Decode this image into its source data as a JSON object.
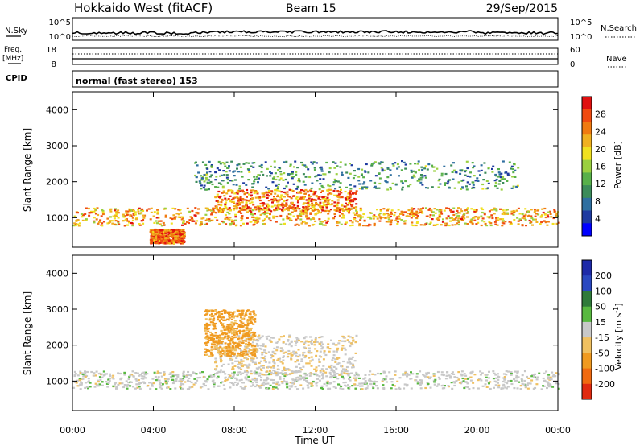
{
  "header": {
    "title": "Hokkaido West (fitACF)",
    "beam": "Beam 15",
    "date": "29/Sep/2015"
  },
  "noise_panel": {
    "left_label": "N.Sky",
    "right_label": "N.Search",
    "left_ticks": [
      "10^5",
      "10^0"
    ],
    "right_ticks": [
      "10^5",
      "10^0"
    ]
  },
  "freq_panel": {
    "left_label_line1": "Freq.",
    "left_label_line2": "[MHz]",
    "left_ticks": [
      "18",
      "8"
    ],
    "right_label": "Nave",
    "right_ticks": [
      "60",
      "0"
    ]
  },
  "cpid_panel": {
    "label": "CPID",
    "text": "normal (fast stereo) 153"
  },
  "chart_data": [
    {
      "type": "heatmap",
      "name": "power",
      "ylabel": "Slant Range [km]",
      "x": {
        "min": 0,
        "max": 24,
        "unit": "hours UT"
      },
      "y": {
        "min": 180,
        "max": 4500,
        "unit": "km"
      },
      "yticks": [
        "1000",
        "2000",
        "3000",
        "4000"
      ],
      "colorbar": {
        "label": "Power [dB]",
        "tick_labels": [
          "4",
          "8",
          "12",
          "16",
          "20",
          "24",
          "28"
        ],
        "range": [
          0,
          32
        ],
        "colors": [
          "#0000ff",
          "#1e3aa0",
          "#2f6fa0",
          "#3c8c5a",
          "#58b04a",
          "#9ad040",
          "#f0e020",
          "#f0b020",
          "#f07a10",
          "#f04a10",
          "#e01010"
        ]
      },
      "echo_regions": [
        {
          "label": "main band",
          "x": [
            0,
            24
          ],
          "range_km": [
            800,
            1300
          ],
          "power_db": 24
        },
        {
          "label": "midday layer",
          "x": [
            7,
            14
          ],
          "range_km": [
            1200,
            1800
          ],
          "power_db": 26
        },
        {
          "label": "upper diffuse",
          "x": [
            6,
            22
          ],
          "range_km": [
            1800,
            2600
          ],
          "power_db": 12
        },
        {
          "label": "near range",
          "x": [
            3.8,
            5.5
          ],
          "range_km": [
            300,
            700
          ],
          "power_db": 28
        }
      ]
    },
    {
      "type": "heatmap",
      "name": "velocity",
      "ylabel": "Slant Range [km]",
      "x": {
        "min": 0,
        "max": 24,
        "unit": "hours UT"
      },
      "y": {
        "min": 180,
        "max": 4500,
        "unit": "km"
      },
      "yticks": [
        "1000",
        "2000",
        "3000",
        "4000"
      ],
      "colorbar": {
        "label": "Velocity [m s",
        "label_exp": "-1",
        "label_close": "]",
        "tick_labels": [
          "200",
          "100",
          "50",
          "15",
          "-15",
          "-50",
          "-100",
          "-200"
        ],
        "range": [
          -250,
          250
        ],
        "colors": [
          "#1e2aa8",
          "#2a48c0",
          "#2f7a3a",
          "#58b840",
          "#c8c8c8",
          "#f0c060",
          "#f09a20",
          "#f06a10",
          "#e02a10"
        ]
      },
      "echo_regions": [
        {
          "label": "ground scatter band",
          "x": [
            0,
            24
          ],
          "range_km": [
            800,
            1300
          ],
          "velocity_ms": 0
        },
        {
          "label": "midday",
          "x": [
            7,
            14
          ],
          "range_km": [
            1200,
            2300
          ],
          "velocity_ms": -10
        },
        {
          "label": "morning arc",
          "x": [
            6.5,
            9
          ],
          "range_km": [
            1700,
            3000
          ],
          "velocity_ms": -60
        }
      ]
    }
  ],
  "xaxis": {
    "label": "Time UT",
    "ticks": [
      "00:00",
      "04:00",
      "08:00",
      "12:00",
      "16:00",
      "20:00",
      "00:00"
    ]
  }
}
